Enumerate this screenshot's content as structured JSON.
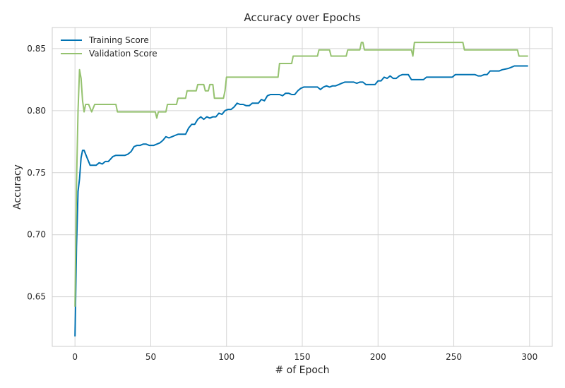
{
  "chart_data": {
    "type": "line",
    "title": "Accuracy over Epochs",
    "xlabel": "# of Epoch",
    "ylabel": "Accuracy",
    "xlim": [
      -15,
      315
    ],
    "ylim": [
      0.61,
      0.867
    ],
    "xticks": [
      0,
      50,
      100,
      150,
      200,
      250,
      300
    ],
    "xtick_labels": [
      "0",
      "50",
      "100",
      "150",
      "200",
      "250",
      "300"
    ],
    "yticks": [
      0.65,
      0.7,
      0.75,
      0.8,
      0.85
    ],
    "ytick_labels": [
      "0.65",
      "0.70",
      "0.75",
      "0.80",
      "0.85"
    ],
    "grid": true,
    "legend_position": "top-left",
    "series": [
      {
        "name": "Training Score",
        "color": "#0072B2",
        "points": [
          [
            0,
            0.618
          ],
          [
            1,
            0.69
          ],
          [
            2,
            0.735
          ],
          [
            3,
            0.745
          ],
          [
            4,
            0.762
          ],
          [
            5,
            0.768
          ],
          [
            6,
            0.768
          ],
          [
            8,
            0.762
          ],
          [
            10,
            0.756
          ],
          [
            14,
            0.756
          ],
          [
            16,
            0.758
          ],
          [
            18,
            0.757
          ],
          [
            20,
            0.759
          ],
          [
            22,
            0.759
          ],
          [
            25,
            0.763
          ],
          [
            27,
            0.764
          ],
          [
            33,
            0.764
          ],
          [
            35,
            0.765
          ],
          [
            37,
            0.767
          ],
          [
            39,
            0.771
          ],
          [
            41,
            0.772
          ],
          [
            43,
            0.772
          ],
          [
            45,
            0.773
          ],
          [
            47,
            0.773
          ],
          [
            49,
            0.772
          ],
          [
            52,
            0.772
          ],
          [
            54,
            0.773
          ],
          [
            56,
            0.774
          ],
          [
            58,
            0.776
          ],
          [
            60,
            0.779
          ],
          [
            62,
            0.778
          ],
          [
            64,
            0.779
          ],
          [
            66,
            0.78
          ],
          [
            68,
            0.781
          ],
          [
            70,
            0.781
          ],
          [
            73,
            0.781
          ],
          [
            75,
            0.786
          ],
          [
            77,
            0.789
          ],
          [
            79,
            0.789
          ],
          [
            81,
            0.793
          ],
          [
            83,
            0.795
          ],
          [
            85,
            0.793
          ],
          [
            87,
            0.795
          ],
          [
            89,
            0.794
          ],
          [
            91,
            0.795
          ],
          [
            93,
            0.795
          ],
          [
            95,
            0.798
          ],
          [
            97,
            0.797
          ],
          [
            99,
            0.8
          ],
          [
            101,
            0.801
          ],
          [
            103,
            0.801
          ],
          [
            105,
            0.803
          ],
          [
            107,
            0.806
          ],
          [
            109,
            0.805
          ],
          [
            111,
            0.805
          ],
          [
            113,
            0.804
          ],
          [
            115,
            0.804
          ],
          [
            117,
            0.806
          ],
          [
            119,
            0.806
          ],
          [
            121,
            0.806
          ],
          [
            123,
            0.809
          ],
          [
            125,
            0.808
          ],
          [
            127,
            0.812
          ],
          [
            129,
            0.813
          ],
          [
            135,
            0.813
          ],
          [
            137,
            0.812
          ],
          [
            139,
            0.814
          ],
          [
            141,
            0.814
          ],
          [
            143,
            0.813
          ],
          [
            145,
            0.813
          ],
          [
            147,
            0.816
          ],
          [
            149,
            0.818
          ],
          [
            151,
            0.819
          ],
          [
            160,
            0.819
          ],
          [
            162,
            0.817
          ],
          [
            164,
            0.819
          ],
          [
            166,
            0.82
          ],
          [
            168,
            0.819
          ],
          [
            170,
            0.82
          ],
          [
            172,
            0.82
          ],
          [
            174,
            0.821
          ],
          [
            176,
            0.822
          ],
          [
            178,
            0.823
          ],
          [
            184,
            0.823
          ],
          [
            186,
            0.822
          ],
          [
            188,
            0.823
          ],
          [
            190,
            0.823
          ],
          [
            192,
            0.821
          ],
          [
            194,
            0.821
          ],
          [
            198,
            0.821
          ],
          [
            200,
            0.824
          ],
          [
            202,
            0.824
          ],
          [
            204,
            0.827
          ],
          [
            206,
            0.826
          ],
          [
            208,
            0.828
          ],
          [
            210,
            0.826
          ],
          [
            212,
            0.826
          ],
          [
            214,
            0.828
          ],
          [
            216,
            0.829
          ],
          [
            220,
            0.829
          ],
          [
            222,
            0.825
          ],
          [
            230,
            0.825
          ],
          [
            232,
            0.827
          ],
          [
            249,
            0.827
          ],
          [
            251,
            0.829
          ],
          [
            264,
            0.829
          ],
          [
            266,
            0.828
          ],
          [
            268,
            0.828
          ],
          [
            270,
            0.829
          ],
          [
            272,
            0.829
          ],
          [
            274,
            0.832
          ],
          [
            280,
            0.832
          ],
          [
            282,
            0.833
          ],
          [
            286,
            0.834
          ],
          [
            288,
            0.835
          ],
          [
            290,
            0.836
          ],
          [
            299,
            0.836
          ]
        ]
      },
      {
        "name": "Validation Score",
        "color": "#95C26F",
        "points": [
          [
            0,
            0.642
          ],
          [
            1,
            0.74
          ],
          [
            2,
            0.8
          ],
          [
            3,
            0.833
          ],
          [
            4,
            0.826
          ],
          [
            5,
            0.808
          ],
          [
            6,
            0.799
          ],
          [
            7,
            0.805
          ],
          [
            9,
            0.805
          ],
          [
            11,
            0.799
          ],
          [
            13,
            0.805
          ],
          [
            27,
            0.805
          ],
          [
            28,
            0.799
          ],
          [
            53,
            0.799
          ],
          [
            54,
            0.794
          ],
          [
            55,
            0.799
          ],
          [
            60,
            0.799
          ],
          [
            61,
            0.805
          ],
          [
            67,
            0.805
          ],
          [
            68,
            0.81
          ],
          [
            73,
            0.81
          ],
          [
            74,
            0.816
          ],
          [
            80,
            0.816
          ],
          [
            81,
            0.821
          ],
          [
            85,
            0.821
          ],
          [
            86,
            0.816
          ],
          [
            88,
            0.816
          ],
          [
            89,
            0.821
          ],
          [
            91,
            0.821
          ],
          [
            92,
            0.81
          ],
          [
            98,
            0.81
          ],
          [
            99,
            0.816
          ],
          [
            100,
            0.827
          ],
          [
            134,
            0.827
          ],
          [
            135,
            0.838
          ],
          [
            143,
            0.838
          ],
          [
            144,
            0.844
          ],
          [
            160,
            0.844
          ],
          [
            161,
            0.849
          ],
          [
            168,
            0.849
          ],
          [
            169,
            0.844
          ],
          [
            179,
            0.844
          ],
          [
            180,
            0.849
          ],
          [
            188,
            0.849
          ],
          [
            189,
            0.855
          ],
          [
            190,
            0.855
          ],
          [
            191,
            0.849
          ],
          [
            222,
            0.849
          ],
          [
            223,
            0.844
          ],
          [
            224,
            0.855
          ],
          [
            256,
            0.855
          ],
          [
            257,
            0.849
          ],
          [
            292,
            0.849
          ],
          [
            293,
            0.844
          ],
          [
            299,
            0.844
          ]
        ]
      }
    ]
  }
}
